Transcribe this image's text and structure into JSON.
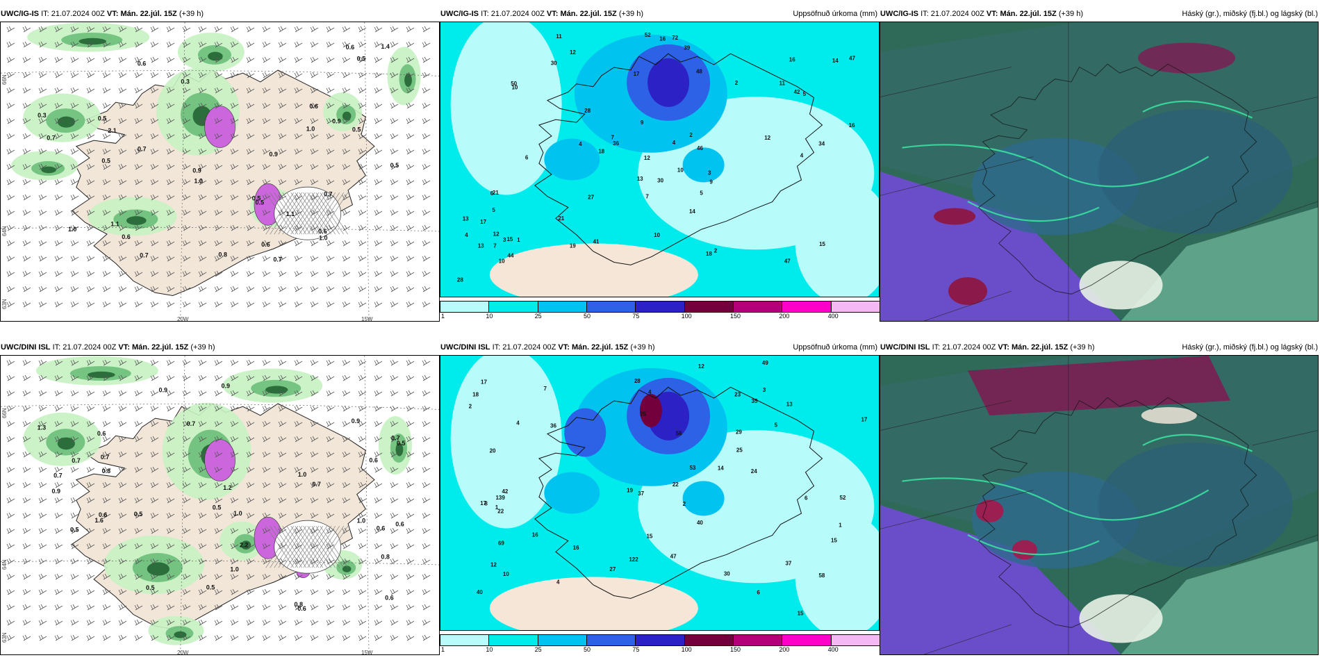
{
  "rows": [
    {
      "model": "UWC/IG-IS",
      "panels": [
        {
          "model": "UWC/IG-IS",
          "it_label": "IT:",
          "it": "21.07.2024 00Z",
          "vt_label": "VT:",
          "vt": "Mán. 22.júl. 15Z",
          "lead": "(+39 h)",
          "right_title": ""
        },
        {
          "model": "UWC/IG-IS",
          "it_label": "IT:",
          "it": "21.07.2024 00Z",
          "vt_label": "VT:",
          "vt": "Mán. 22.júl. 15Z",
          "lead": "(+39 h)",
          "right_title": "Uppsöfnuð úrkoma (mm)"
        },
        {
          "model": "UWC/IG-IS",
          "it_label": "IT:",
          "it": "21.07.2024 00Z",
          "vt_label": "VT:",
          "vt": "Mán. 22.júl. 15Z",
          "lead": "(+39 h)",
          "right_title": "Háský (gr.), miðský (fj.bl.) og lágský (bl.)"
        }
      ]
    },
    {
      "model": "UWC/DINI ISL",
      "panels": [
        {
          "model": "UWC/DINI ISL",
          "it_label": "IT:",
          "it": "21.07.2024 00Z",
          "vt_label": "VT:",
          "vt": "Mán. 22.júl. 15Z",
          "lead": "(+39 h)",
          "right_title": ""
        },
        {
          "model": "UWC/DINI ISL",
          "it_label": "IT:",
          "it": "21.07.2024 00Z",
          "vt_label": "VT:",
          "vt": "Mán. 22.júl. 15Z",
          "lead": "(+39 h)",
          "right_title": "Uppsöfnuð úrkoma (mm)"
        },
        {
          "model": "UWC/DINI ISL",
          "it_label": "IT:",
          "it": "21.07.2024 00Z",
          "vt_label": "VT:",
          "vt": "Mán. 22.júl. 15Z",
          "lead": "(+39 h)",
          "right_title": "Háský (gr.), miðský (fj.bl.) og lágský (bl.)"
        }
      ]
    }
  ],
  "axes": {
    "lon_left": "20W",
    "lon_right": "15W",
    "lat_top": "66N",
    "lat_mid": "64N",
    "lat_bottom": "63N"
  },
  "colorbar": {
    "ticks": [
      "1",
      "10",
      "25",
      "50",
      "75",
      "100",
      "150",
      "200",
      "400"
    ],
    "colors": [
      "#b7fbfb",
      "#00ecec",
      "#00c3f0",
      "#2d62e6",
      "#2b21c5",
      "#73003d",
      "#b3007a",
      "#ff00c8",
      "#f4b8f4"
    ]
  },
  "map1_values": {
    "top": [
      "0.7",
      "0.6",
      "1.1",
      "0.5",
      "0.9",
      "0.6",
      "0.5",
      "0.7",
      "1.0",
      "0.6",
      "1.0",
      "0.3",
      "0.9",
      "0.5",
      "1.0",
      "0.6",
      "0.7",
      "0.5",
      "0.7",
      "0.5",
      "0.6",
      "0.5",
      "0.7",
      "1.0",
      "0.9",
      "0.6",
      "0.5",
      "2.1",
      "0.8",
      "0.3",
      "1.1",
      "1.4"
    ],
    "bottom": [
      "0.8",
      "1.0",
      "0.9",
      "0.6",
      "0.7",
      "0.8",
      "0.5",
      "0.6",
      "1.0",
      "0.5",
      "0.9",
      "1.0",
      "0.7",
      "0.6",
      "1.0",
      "0.7",
      "0.5",
      "0.9",
      "0.6",
      "0.7",
      "0.5",
      "1.2",
      "0.6",
      "0.5",
      "0.7",
      "0.6",
      "0.9",
      "0.5",
      "2.2",
      "1.6",
      "0.8",
      "1.3",
      "0.7",
      "0.6"
    ]
  },
  "map2_values": {
    "top": [
      "30",
      "34",
      "36",
      "47",
      "5",
      "10",
      "46",
      "19",
      "27",
      "14",
      "11",
      "12",
      "50",
      "47",
      "41",
      "39",
      "44",
      "42",
      "72",
      "18",
      "21",
      "7",
      "12",
      "9",
      "13",
      "15",
      "21",
      "13",
      "18",
      "16",
      "10",
      "7",
      "10",
      "11",
      "14",
      "48",
      "30",
      "28",
      "12",
      "9",
      "12",
      "17",
      "16",
      "6",
      "4",
      "5",
      "2",
      "4",
      "3",
      "2",
      "4",
      "5",
      "2",
      "13",
      "15",
      "17",
      "16",
      "4",
      "7",
      "6",
      "1",
      "3",
      "10",
      "28",
      "52"
    ],
    "bottom": [
      "49",
      "36",
      "29",
      "23",
      "22",
      "24",
      "40",
      "27",
      "12",
      "16",
      "22",
      "69",
      "122",
      "18",
      "42",
      "139",
      "47",
      "37",
      "56",
      "58",
      "28",
      "20",
      "15",
      "19",
      "17",
      "40",
      "35",
      "37",
      "12",
      "25",
      "30",
      "13",
      "14",
      "52",
      "53",
      "15",
      "17",
      "7",
      "6",
      "4",
      "8",
      "5",
      "6",
      "4",
      "2",
      "1",
      "3",
      "1",
      "2",
      "4",
      "15",
      "25",
      "16",
      "17",
      "10"
    ]
  }
}
